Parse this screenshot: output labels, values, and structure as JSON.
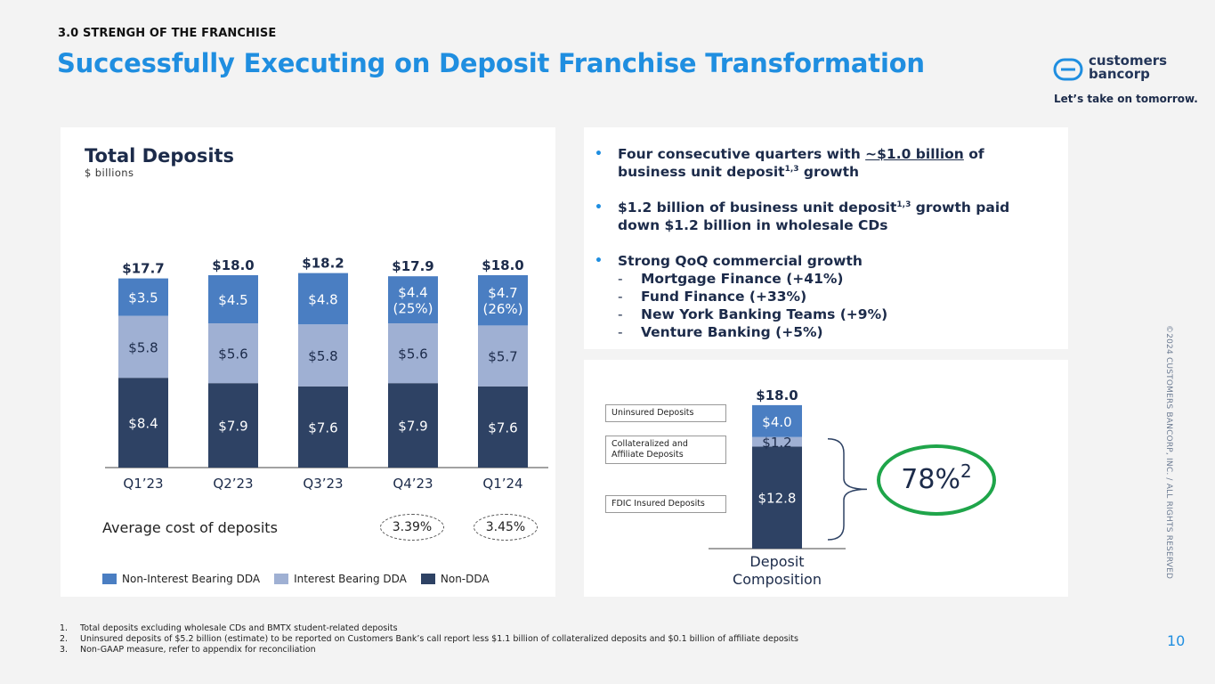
{
  "header": {
    "section_label": "3.0 STRENGH OF THE FRANCHISE",
    "title": "Successfully Executing on Deposit Franchise Transformation"
  },
  "brand": {
    "logo_line1": "customers",
    "logo_line2": "bancorp",
    "tagline": "Let’s take on tomorrow.",
    "accent_color": "#1f8ee0",
    "navy_color": "#2e4264"
  },
  "copyright": "©2024 CUSTOMERS BANCORP, INC. / ALL RIGHTS RESERVED",
  "chart_data": [
    {
      "type": "bar",
      "stacked": true,
      "title": "Total Deposits",
      "subtitle": "$ billions",
      "categories": [
        "Q1’23",
        "Q2’23",
        "Q3’23",
        "Q4’23",
        "Q1’24"
      ],
      "totals": [
        "$17.7",
        "$18.0",
        "$18.2",
        "$17.9",
        "$18.0"
      ],
      "series": [
        {
          "name": "Non-DDA",
          "color": "#2e4264",
          "values": [
            8.4,
            7.9,
            7.6,
            7.9,
            7.6
          ],
          "labels": [
            "$8.4",
            "$7.9",
            "$7.6",
            "$7.9",
            "$7.6"
          ]
        },
        {
          "name": "Interest Bearing DDA",
          "color": "#9fb0d3",
          "values": [
            5.8,
            5.6,
            5.8,
            5.6,
            5.7
          ],
          "labels": [
            "$5.8",
            "$5.6",
            "$5.8",
            "$5.6",
            "$5.7"
          ]
        },
        {
          "name": "Non-Interest Bearing DDA",
          "color": "#4a7ec2",
          "values": [
            3.5,
            4.5,
            4.8,
            4.4,
            4.7
          ],
          "labels": [
            "$3.5",
            "$4.5",
            "$4.8",
            "$4.4",
            "$4.7"
          ],
          "percent_labels": [
            "",
            "",
            "",
            "(25%)",
            "(26%)"
          ]
        }
      ],
      "legend": [
        "Non-Interest Bearing DDA",
        "Interest Bearing DDA",
        "Non-DDA"
      ],
      "ylim": [
        0,
        18.2
      ]
    },
    {
      "type": "bar",
      "stacked": true,
      "title": "Deposit Composition",
      "categories": [
        "Deposit Composition"
      ],
      "totals": [
        "$18.0"
      ],
      "series": [
        {
          "name": "FDIC Insured Deposits",
          "color": "#2e4264",
          "values": [
            12.8
          ],
          "labels": [
            "$12.8"
          ]
        },
        {
          "name": "Collateralized and Affiliate Deposits",
          "color": "#9fb0d3",
          "values": [
            1.2
          ],
          "labels": [
            "$1.2"
          ]
        },
        {
          "name": "Uninsured Deposits",
          "color": "#4a7ec2",
          "values": [
            4.0
          ],
          "labels": [
            "$4.0"
          ]
        }
      ],
      "ylim": [
        0,
        18.0
      ]
    }
  ],
  "deposits_chart": {
    "category_labels": [
      "Q1’23",
      "Q2’23",
      "Q3’23",
      "Q4’23",
      "Q1’24"
    ]
  },
  "avg_cost": {
    "label": "Average cost of deposits",
    "q4_23": "3.39%",
    "q1_24": "3.45%"
  },
  "legend": {
    "non_interest": "Non-Interest Bearing DDA",
    "interest": "Interest Bearing DDA",
    "non_dda": "Non-DDA"
  },
  "bullets": {
    "b1_pre": "Four consecutive quarters with ",
    "b1_link": "~$1.0 billion",
    "b1_mid": " of business unit deposit",
    "b1_sup": "1,3",
    "b1_post": " growth",
    "b2_pre": "$1.2 billion of business unit deposit",
    "b2_sup": "1,3",
    "b2_post": " growth paid down $1.2 billion in wholesale CDs",
    "b3": "Strong QoQ commercial growth",
    "sub": [
      "Mortgage Finance (+41%)",
      "Fund Finance (+33%)",
      "New York Banking Teams (+9%)",
      "Venture Banking (+5%)"
    ]
  },
  "composition": {
    "box_uninsured": "Uninsured Deposits",
    "box_collateral": "Collateralized and Affiliate Deposits",
    "box_fdic": "FDIC Insured Deposits",
    "axis_label_1": "Deposit",
    "axis_label_2": "Composition",
    "pct": "78%",
    "pct_sup": "2"
  },
  "footnotes": [
    {
      "num": "1.",
      "text": "Total deposits excluding wholesale CDs and BMTX student-related deposits"
    },
    {
      "num": "2.",
      "text": "Uninsured deposits of $5.2 billion (estimate) to be reported on Customers Bank’s call report less $1.1 billion of collateralized deposits and $0.1 billion of affiliate deposits"
    },
    {
      "num": "3.",
      "text": "Non-GAAP measure, refer to appendix for reconciliation"
    }
  ],
  "page_number": "10"
}
